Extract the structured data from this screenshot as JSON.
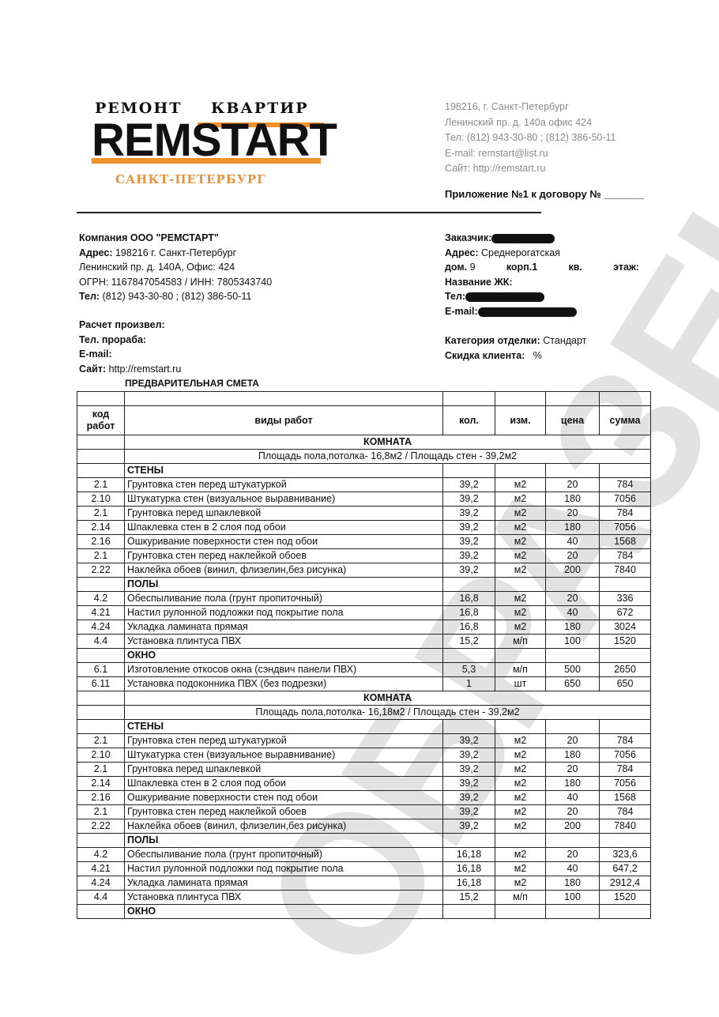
{
  "logo": {
    "top": "РЕМОНТ КВАРТИР",
    "brand": "REMSTART",
    "city": "САНКТ-ПЕТЕРБУРГ",
    "accent": "#f0902a"
  },
  "contact": [
    "198216, г. Санкт-Петербург",
    "Ленинский пр. д. 140а  офис 424",
    "Тел: (812) 943-30-80 ; (812) 386-50-11",
    "E-mail: remstart@list.ru",
    "Сайт:  http://remstart.ru"
  ],
  "appendix": "Приложение №1 к договору № _______",
  "company": {
    "name": "Компания ООО \"РЕМСТАРТ\"",
    "address_label": "Адрес:",
    "address": "198216  г. Санкт-Петербург",
    "address2": "Ленинский пр. д. 140А, Офис: 424",
    "ogrn": "ОГРН: 1167847054583 / ИНН: 7805343740",
    "phone_label": "Тел:",
    "phone": "(812) 943-30-80  ;  (812) 386-50-11"
  },
  "client": {
    "customer_label": "Заказчик:",
    "address_label": "Адрес:",
    "address": "Среднерогатская",
    "house_label": "дом.",
    "house": "9",
    "building_label": "корп.1",
    "apt_label": "кв.",
    "floor_label": "этаж:",
    "complex_label": "Название ЖК:",
    "phone_label": "Тел:",
    "email_label": "E-mail:"
  },
  "calc": {
    "by_label": "Расчет произвел:",
    "foreman_label": "Тел. прораба:",
    "email_label": "E-mail:",
    "site_label": "Сайт:",
    "site": "http://remstart.ru"
  },
  "category": {
    "label": "Категория отделки:",
    "value": "Стандарт",
    "discount_label": "Скидка клиента:",
    "discount": "%"
  },
  "smeta_title": "ПРЕДВАРИТЕЛЬНАЯ СМЕТА",
  "watermark": "ОБРАЗЕЦ",
  "table": {
    "headers": [
      "код работ",
      "виды работ",
      "кол.",
      "изм.",
      "цена",
      "сумма"
    ],
    "rows": [
      {
        "type": "section",
        "text": "КОМНАТА"
      },
      {
        "type": "area",
        "text": "Площадь пола,потолка- 16,8м2  /  Площадь стен - 39,2м2"
      },
      {
        "type": "group",
        "text": "СТЕНЫ"
      },
      {
        "type": "item",
        "cells": [
          "2.1",
          "Грунтовка стен перед штукатуркой",
          "39,2",
          "м2",
          "20",
          "784"
        ]
      },
      {
        "type": "item",
        "cells": [
          "2.10",
          "Штукатурка стен (визуальное выравнивание)",
          "39,2",
          "м2",
          "180",
          "7056"
        ]
      },
      {
        "type": "item",
        "cells": [
          "2.1",
          "Грунтовка перед шпаклевкой",
          "39,2",
          "м2",
          "20",
          "784"
        ]
      },
      {
        "type": "item",
        "cells": [
          "2.14",
          "Шпаклевка стен в 2 слоя под обои",
          "39,2",
          "м2",
          "180",
          "7056"
        ]
      },
      {
        "type": "item",
        "cells": [
          "2.16",
          "Ошкуривание поверхности стен под обои",
          "39,2",
          "м2",
          "40",
          "1568"
        ]
      },
      {
        "type": "item",
        "cells": [
          "2.1",
          "Грунтовка стен перед наклейкой обоев",
          "39,2",
          "м2",
          "20",
          "784"
        ]
      },
      {
        "type": "item",
        "cells": [
          "2.22",
          "Наклейка обоев (винил, флизелин,без рисунка)",
          "39,2",
          "м2",
          "200",
          "7840"
        ]
      },
      {
        "type": "group",
        "text": "ПОЛЫ"
      },
      {
        "type": "item",
        "cells": [
          "4.2",
          "Обеспыливание пола (грунт пропиточный)",
          "16,8",
          "м2",
          "20",
          "336"
        ]
      },
      {
        "type": "item",
        "cells": [
          "4.21",
          "Настил рулонной подложки под покрытие пола",
          "16,8",
          "м2",
          "40",
          "672"
        ]
      },
      {
        "type": "item",
        "cells": [
          "4.24",
          "Укладка ламината прямая",
          "16,8",
          "м2",
          "180",
          "3024"
        ]
      },
      {
        "type": "item",
        "cells": [
          "4.4",
          "Установка плинтуса ПВХ",
          "15,2",
          "м/п",
          "100",
          "1520"
        ]
      },
      {
        "type": "group",
        "text": "ОКНО"
      },
      {
        "type": "item",
        "cells": [
          "6.1",
          "Изготовление откосов окна (сэндвич панели ПВХ)",
          "5,3",
          "м/п",
          "500",
          "2650"
        ]
      },
      {
        "type": "item",
        "cells": [
          "6.11",
          "Установка подоконника ПВХ (без подрезки)",
          "1",
          "шт",
          "650",
          "650"
        ]
      },
      {
        "type": "section",
        "text": "КОМНАТА"
      },
      {
        "type": "area",
        "text": "Площадь пола,потолка- 16,18м2  /  Площадь стен - 39,2м2"
      },
      {
        "type": "group",
        "text": "СТЕНЫ"
      },
      {
        "type": "item",
        "cells": [
          "2.1",
          "Грунтовка стен перед штукатуркой",
          "39,2",
          "м2",
          "20",
          "784"
        ]
      },
      {
        "type": "item",
        "cells": [
          "2.10",
          "Штукатурка стен (визуальное выравнивание)",
          "39,2",
          "м2",
          "180",
          "7056"
        ]
      },
      {
        "type": "item",
        "cells": [
          "2.1",
          "Грунтовка перед шпаклевкой",
          "39,2",
          "м2",
          "20",
          "784"
        ]
      },
      {
        "type": "item",
        "cells": [
          "2.14",
          "Шпаклевка стен в 2 слоя под обои",
          "39,2",
          "м2",
          "180",
          "7056"
        ]
      },
      {
        "type": "item",
        "cells": [
          "2.16",
          "Ошкуривание поверхности стен под обои",
          "39,2",
          "м2",
          "40",
          "1568"
        ]
      },
      {
        "type": "item",
        "cells": [
          "2.1",
          "Грунтовка стен перед наклейкой обоев",
          "39,2",
          "м2",
          "20",
          "784"
        ]
      },
      {
        "type": "item",
        "cells": [
          "2.22",
          "Наклейка обоев (винил, флизелин,без рисунка)",
          "39,2",
          "м2",
          "200",
          "7840"
        ]
      },
      {
        "type": "group",
        "text": "ПОЛЫ"
      },
      {
        "type": "item",
        "cells": [
          "4.2",
          "Обеспыливание пола (грунт пропиточный)",
          "16,18",
          "м2",
          "20",
          "323,6"
        ]
      },
      {
        "type": "item",
        "cells": [
          "4.21",
          "Настил рулонной подложки под покрытие пола",
          "16,18",
          "м2",
          "40",
          "647,2"
        ]
      },
      {
        "type": "item",
        "cells": [
          "4.24",
          "Укладка ламината прямая",
          "16,18",
          "м2",
          "180",
          "2912,4"
        ]
      },
      {
        "type": "item",
        "cells": [
          "4.4",
          "Установка плинтуса ПВХ",
          "15,2",
          "м/п",
          "100",
          "1520"
        ]
      },
      {
        "type": "group",
        "text": "ОКНО"
      }
    ]
  }
}
